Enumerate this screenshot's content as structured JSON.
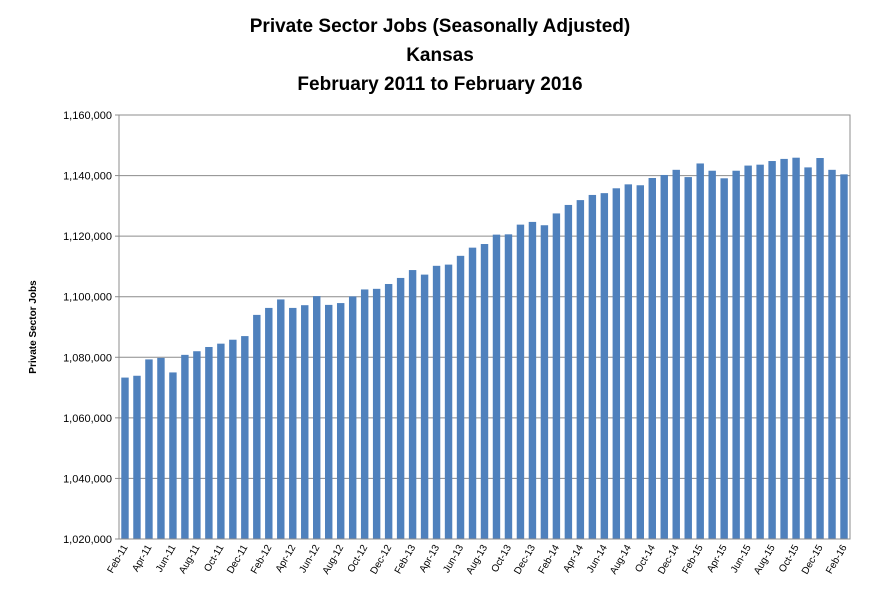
{
  "chart_data": {
    "type": "bar",
    "title": "Private Sector Jobs (Seasonally Adjusted)",
    "subtitle": "Kansas",
    "subtitle2": "February 2011 to February 2016",
    "xlabel": "",
    "ylabel": "Private Sector Jobs",
    "ylim": [
      1020000,
      1160000
    ],
    "yticks": [
      "1,020,000",
      "1,040,000",
      "1,060,000",
      "1,080,000",
      "1,100,000",
      "1,120,000",
      "1,140,000",
      "1,160,000"
    ],
    "ytick_values": [
      1020000,
      1040000,
      1060000,
      1080000,
      1100000,
      1120000,
      1140000,
      1160000
    ],
    "grid": true,
    "bar_color": "#4f81bd",
    "x_tick_labels": [
      "Feb-11",
      "Apr-11",
      "Jun-11",
      "Aug-11",
      "Oct-11",
      "Dec-11",
      "Feb-12",
      "Apr-12",
      "Jun-12",
      "Aug-12",
      "Oct-12",
      "Dec-12",
      "Feb-13",
      "Apr-13",
      "Jun-13",
      "Aug-13",
      "Oct-13",
      "Dec-13",
      "Feb-14",
      "Apr-14",
      "Jun-14",
      "Aug-14",
      "Oct-14",
      "Dec-14",
      "Feb-15",
      "Apr-15",
      "Jun-15",
      "Aug-15",
      "Oct-15",
      "Dec-15",
      "Feb-16"
    ],
    "categories": [
      "Feb-11",
      "Mar-11",
      "Apr-11",
      "May-11",
      "Jun-11",
      "Jul-11",
      "Aug-11",
      "Sep-11",
      "Oct-11",
      "Nov-11",
      "Dec-11",
      "Jan-12",
      "Feb-12",
      "Mar-12",
      "Apr-12",
      "May-12",
      "Jun-12",
      "Jul-12",
      "Aug-12",
      "Sep-12",
      "Oct-12",
      "Nov-12",
      "Dec-12",
      "Jan-13",
      "Feb-13",
      "Mar-13",
      "Apr-13",
      "May-13",
      "Jun-13",
      "Jul-13",
      "Aug-13",
      "Sep-13",
      "Oct-13",
      "Nov-13",
      "Dec-13",
      "Jan-14",
      "Feb-14",
      "Mar-14",
      "Apr-14",
      "May-14",
      "Jun-14",
      "Jul-14",
      "Aug-14",
      "Sep-14",
      "Oct-14",
      "Nov-14",
      "Dec-14",
      "Jan-15",
      "Feb-15",
      "Mar-15",
      "Apr-15",
      "May-15",
      "Jun-15",
      "Jul-15",
      "Aug-15",
      "Sep-15",
      "Oct-15",
      "Nov-15",
      "Dec-15",
      "Jan-16",
      "Feb-16"
    ],
    "values": [
      1073300,
      1073900,
      1079300,
      1079800,
      1075000,
      1080800,
      1082000,
      1083400,
      1084500,
      1085800,
      1087000,
      1094000,
      1096300,
      1099100,
      1096300,
      1097200,
      1100200,
      1097300,
      1097900,
      1100100,
      1102400,
      1102600,
      1104200,
      1106200,
      1108800,
      1107300,
      1110200,
      1110600,
      1113500,
      1116200,
      1117400,
      1120500,
      1120600,
      1123800,
      1124700,
      1123600,
      1127500,
      1130300,
      1131900,
      1133600,
      1134200,
      1135800,
      1137100,
      1136800,
      1139200,
      1140200,
      1141900,
      1139500,
      1144000,
      1141600,
      1139100,
      1141600,
      1143300,
      1143600,
      1144800,
      1145500,
      1145900,
      1142700,
      1145800,
      1141900,
      1140400
    ]
  }
}
